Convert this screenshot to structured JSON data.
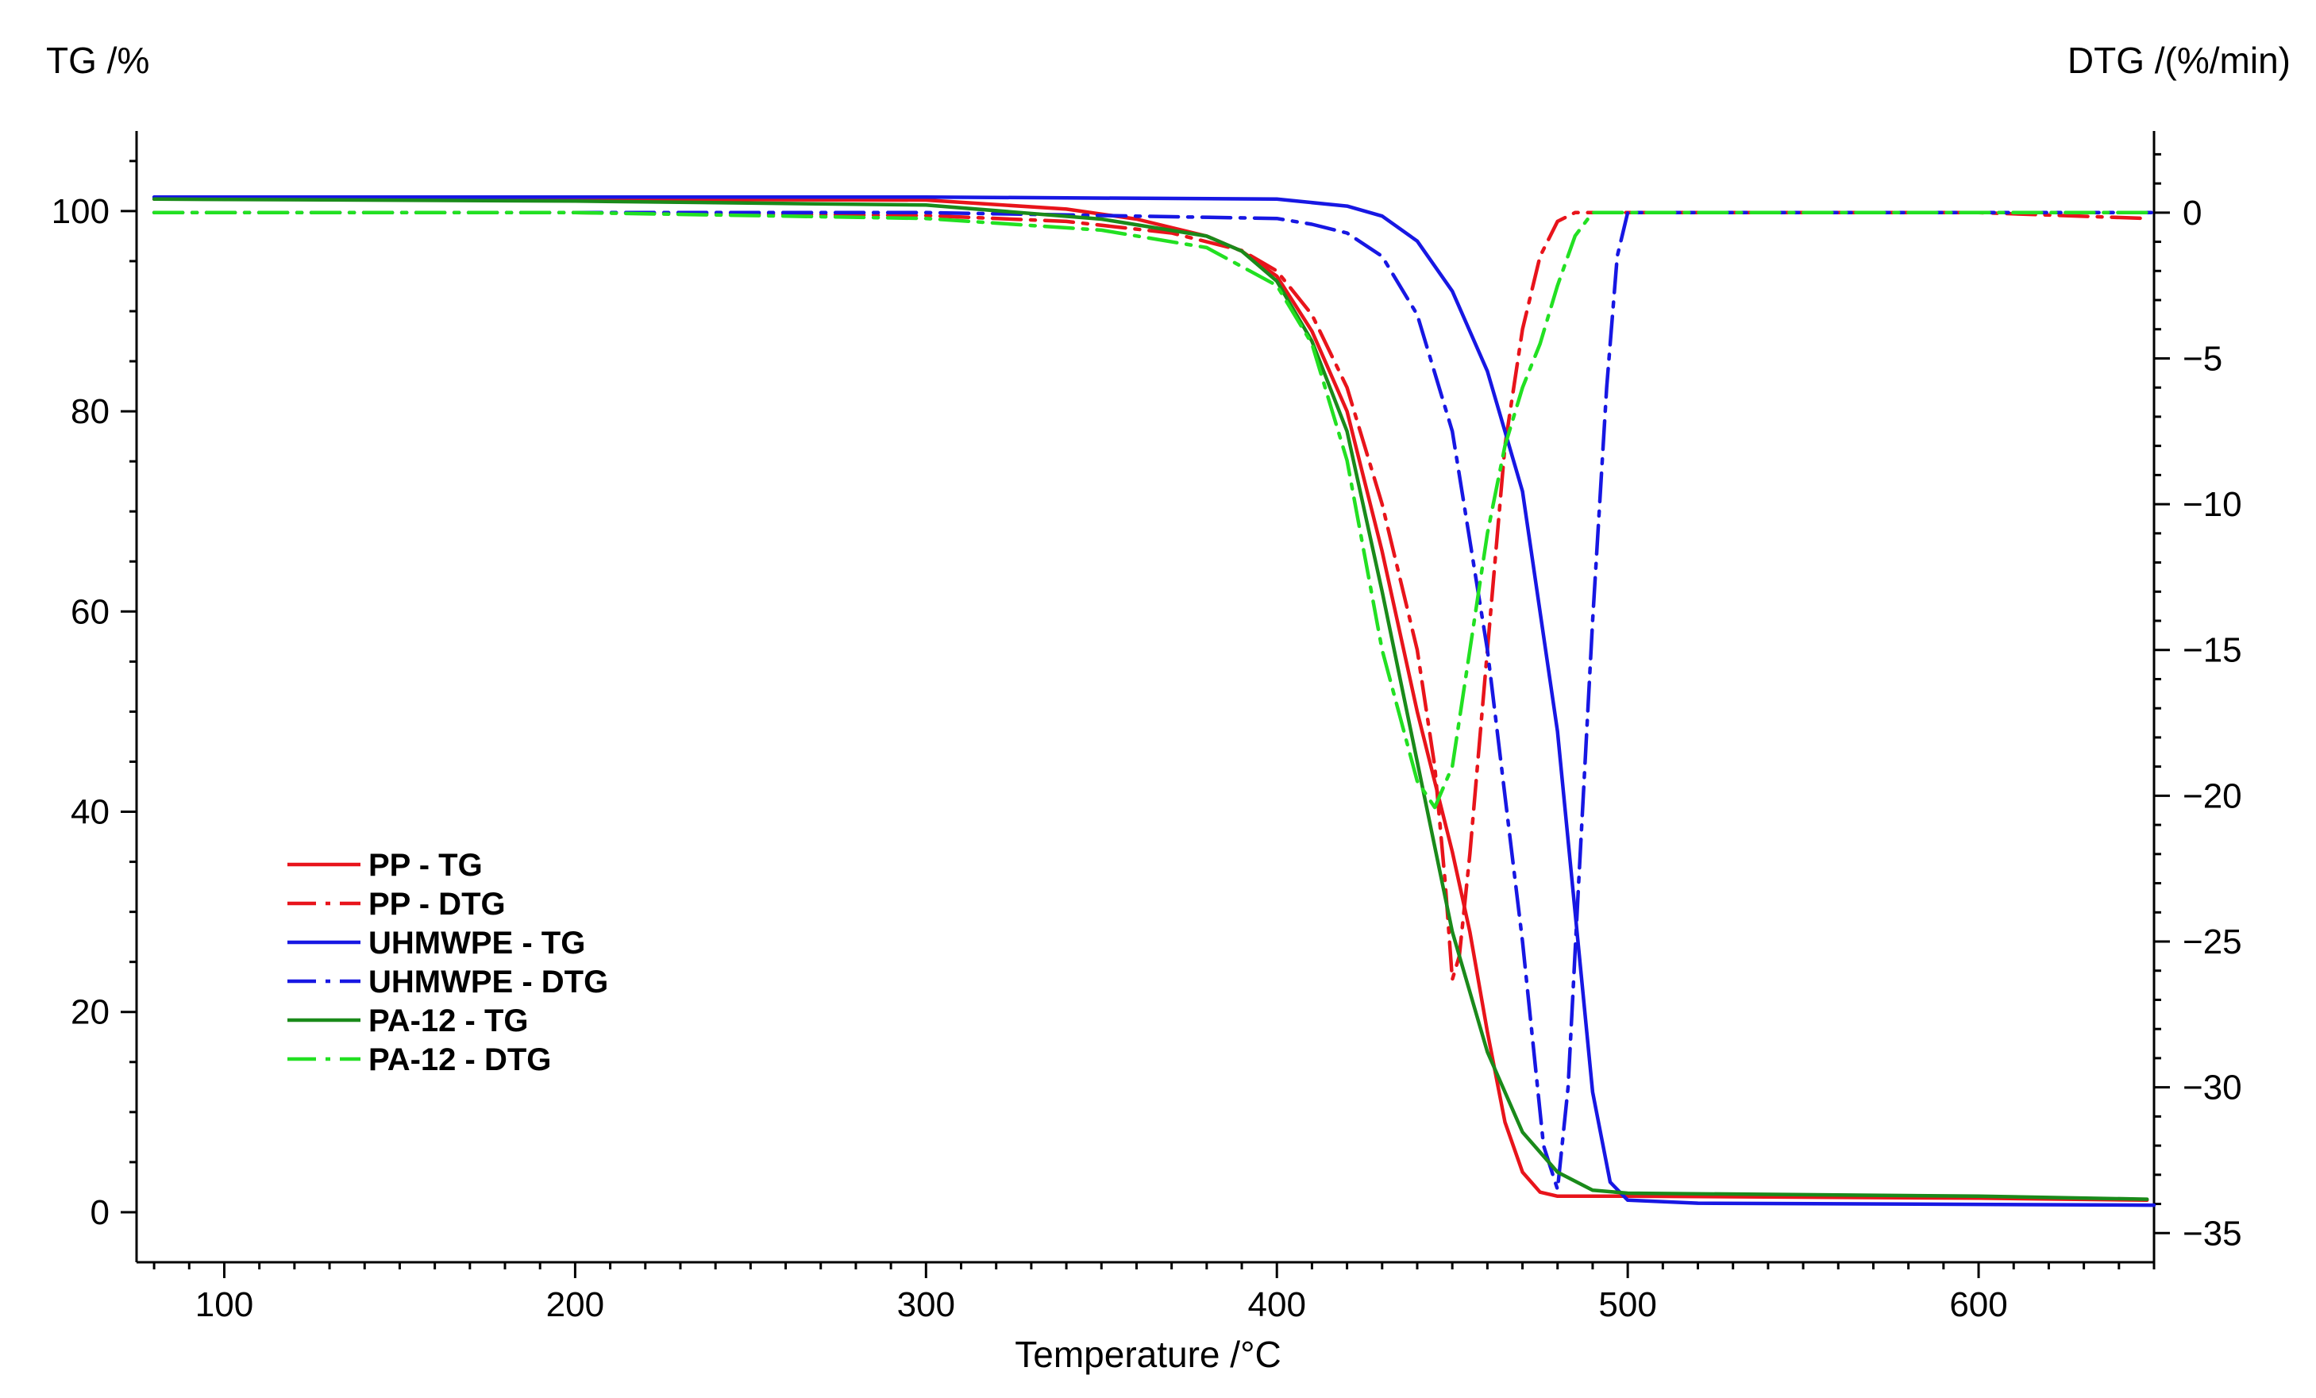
{
  "chart_data": {
    "type": "line",
    "title": "",
    "xlabel": "Temperature /°C",
    "ylabel_left": "TG /%",
    "ylabel_right": "DTG /(%/min)",
    "xlim": [
      75,
      650
    ],
    "ylim_left": [
      -5,
      108
    ],
    "ylim_right": [
      -36,
      2.8
    ],
    "x_ticks": [
      100,
      200,
      300,
      400,
      500,
      600
    ],
    "y_left_ticks": [
      0,
      20,
      40,
      60,
      80,
      100
    ],
    "y_right_ticks": [
      0,
      -5,
      -10,
      -15,
      -20,
      -25,
      -30,
      -35
    ],
    "legend_position": "lower-left",
    "series": [
      {
        "name": "PP - TG",
        "axis": "left",
        "color": "#e8141b",
        "dash": "solid",
        "points": [
          [
            80,
            101.2
          ],
          [
            200,
            101.2
          ],
          [
            300,
            101.1
          ],
          [
            340,
            100.2
          ],
          [
            360,
            99.2
          ],
          [
            380,
            97.5
          ],
          [
            390,
            96
          ],
          [
            400,
            93.5
          ],
          [
            410,
            88
          ],
          [
            420,
            80
          ],
          [
            430,
            66
          ],
          [
            440,
            50
          ],
          [
            450,
            36
          ],
          [
            455,
            28
          ],
          [
            460,
            18
          ],
          [
            465,
            9
          ],
          [
            470,
            4
          ],
          [
            475,
            2
          ],
          [
            480,
            1.6
          ],
          [
            500,
            1.6
          ],
          [
            600,
            1.4
          ],
          [
            648,
            1.2
          ]
        ]
      },
      {
        "name": "PP - DTG",
        "axis": "right",
        "color": "#e8141b",
        "dash": "dashdot",
        "points": [
          [
            80,
            0
          ],
          [
            200,
            0
          ],
          [
            300,
            -0.1
          ],
          [
            340,
            -0.3
          ],
          [
            370,
            -0.7
          ],
          [
            390,
            -1.3
          ],
          [
            400,
            -2
          ],
          [
            410,
            -3.5
          ],
          [
            420,
            -6
          ],
          [
            430,
            -10
          ],
          [
            440,
            -15
          ],
          [
            445,
            -19
          ],
          [
            448,
            -23
          ],
          [
            450,
            -26.3
          ],
          [
            452,
            -25.5
          ],
          [
            455,
            -22
          ],
          [
            460,
            -15
          ],
          [
            465,
            -8
          ],
          [
            470,
            -4
          ],
          [
            475,
            -1.5
          ],
          [
            480,
            -0.3
          ],
          [
            485,
            0
          ],
          [
            600,
            0
          ],
          [
            648,
            -0.2
          ]
        ]
      },
      {
        "name": "UHMWPE - TG",
        "axis": "left",
        "color": "#1717e3",
        "dash": "solid",
        "points": [
          [
            80,
            101.4
          ],
          [
            300,
            101.4
          ],
          [
            400,
            101.2
          ],
          [
            420,
            100.5
          ],
          [
            430,
            99.5
          ],
          [
            440,
            97
          ],
          [
            450,
            92
          ],
          [
            460,
            84
          ],
          [
            470,
            72
          ],
          [
            480,
            48
          ],
          [
            485,
            30
          ],
          [
            490,
            12
          ],
          [
            495,
            3
          ],
          [
            500,
            1.2
          ],
          [
            520,
            0.9
          ],
          [
            650,
            0.7
          ]
        ]
      },
      {
        "name": "UHMWPE - DTG",
        "axis": "right",
        "color": "#1717e3",
        "dash": "dashdot",
        "points": [
          [
            80,
            0
          ],
          [
            300,
            0
          ],
          [
            400,
            -0.2
          ],
          [
            410,
            -0.4
          ],
          [
            420,
            -0.7
          ],
          [
            430,
            -1.5
          ],
          [
            440,
            -3.5
          ],
          [
            450,
            -7.5
          ],
          [
            460,
            -15
          ],
          [
            470,
            -25
          ],
          [
            476,
            -32
          ],
          [
            480,
            -33.5
          ],
          [
            483,
            -30
          ],
          [
            486,
            -23
          ],
          [
            490,
            -14
          ],
          [
            494,
            -6
          ],
          [
            497,
            -1.5
          ],
          [
            500,
            0
          ],
          [
            650,
            0
          ]
        ]
      },
      {
        "name": "PA-12 - TG",
        "axis": "left",
        "color": "#1a8a1a",
        "dash": "solid",
        "points": [
          [
            80,
            101.2
          ],
          [
            200,
            101
          ],
          [
            300,
            100.6
          ],
          [
            350,
            99.2
          ],
          [
            380,
            97.5
          ],
          [
            390,
            96
          ],
          [
            400,
            93
          ],
          [
            410,
            87
          ],
          [
            420,
            78
          ],
          [
            430,
            62
          ],
          [
            440,
            45
          ],
          [
            450,
            28
          ],
          [
            460,
            16
          ],
          [
            470,
            8
          ],
          [
            480,
            4
          ],
          [
            490,
            2.2
          ],
          [
            500,
            1.9
          ],
          [
            600,
            1.6
          ],
          [
            648,
            1.3
          ]
        ]
      },
      {
        "name": "PA-12 - DTG",
        "axis": "right",
        "color": "#22e022",
        "dash": "dashdot",
        "points": [
          [
            80,
            0
          ],
          [
            200,
            0
          ],
          [
            300,
            -0.2
          ],
          [
            350,
            -0.6
          ],
          [
            380,
            -1.2
          ],
          [
            400,
            -2.5
          ],
          [
            410,
            -4.5
          ],
          [
            420,
            -8.5
          ],
          [
            430,
            -15
          ],
          [
            440,
            -19.5
          ],
          [
            445,
            -20.4
          ],
          [
            450,
            -19
          ],
          [
            455,
            -15
          ],
          [
            460,
            -11
          ],
          [
            465,
            -8
          ],
          [
            470,
            -6
          ],
          [
            475,
            -4.5
          ],
          [
            480,
            -2.5
          ],
          [
            485,
            -0.8
          ],
          [
            490,
            0
          ],
          [
            650,
            0
          ]
        ]
      }
    ]
  }
}
